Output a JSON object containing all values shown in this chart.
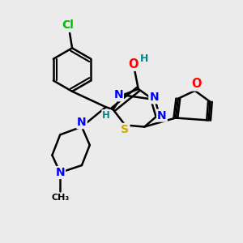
{
  "bg_color": "#ebebeb",
  "atom_colors": {
    "C": "#000000",
    "N": "#0000ff",
    "O": "#ff0000",
    "S": "#ccaa00",
    "Cl": "#00bb00",
    "H": "#008888"
  },
  "bond_color": "#000000",
  "bond_width": 1.8
}
